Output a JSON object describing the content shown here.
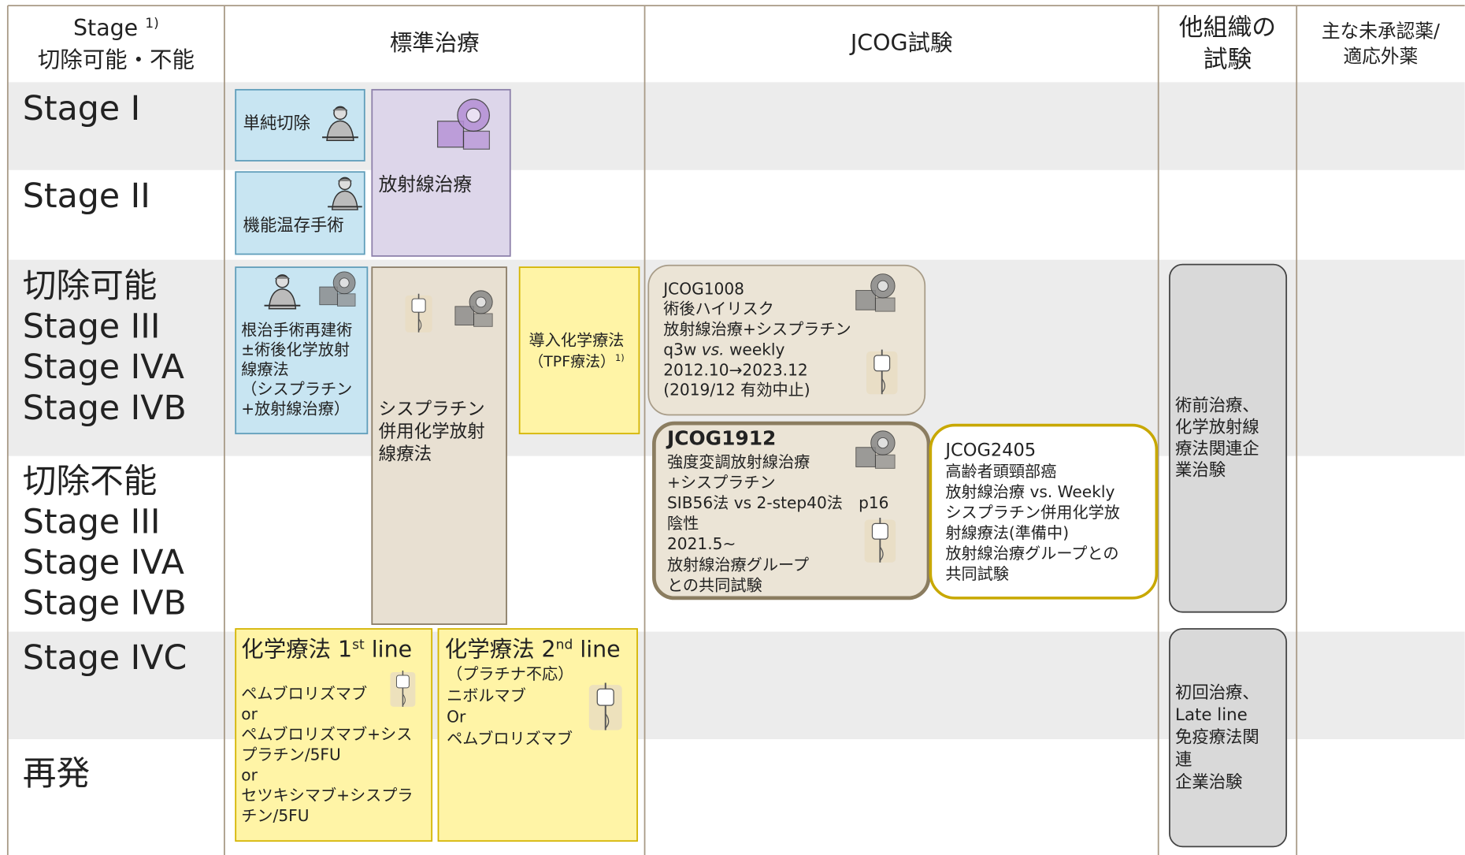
{
  "header": {
    "stage": "Stage ",
    "stage_note": "1)",
    "resectability": "切除可能・不能",
    "standard": "標準治療",
    "jcog": "JCOG試験",
    "other_trials": [
      "他組織の",
      "試験"
    ],
    "unapproved": [
      "主な未承認薬/",
      "適応外薬"
    ]
  },
  "rows": {
    "stage_1": "Stage I",
    "stage_2": "Stage II",
    "resectable": [
      "切除可能",
      "Stage III",
      "Stage IVA",
      "Stage IVB"
    ],
    "unresectable": [
      "切除不能",
      "Stage III",
      "Stage IVA",
      "Stage IVB"
    ],
    "stage_4c": "Stage IVC",
    "recurrence": "再発"
  },
  "standard": {
    "simple_resection": "単純切除",
    "function_preserving": "機能温存手術",
    "radiotherapy": "放射線治療",
    "radical_surgery": [
      "根治手術再建術",
      "±術後化学放射",
      "線療法",
      "（シスプラチン",
      "+放射線治療）"
    ],
    "cisplatin_crt": [
      "シスプラチン",
      "併用化学放射",
      "線療法"
    ],
    "induction": {
      "title": "導入化学療法",
      "regimen": "（TPF療法）",
      "note": "1)"
    },
    "first_line": {
      "title": [
        "化学療法 1",
        "st",
        " line"
      ],
      "lines": [
        "ペムブロリズマブ",
        "or",
        "ペムブロリズマブ+シス",
        "プラチン/5FU",
        "or",
        "セツキシマブ+シスプラ",
        "チン/5FU"
      ]
    },
    "second_line": {
      "title": [
        "化学療法 2",
        "nd",
        " line"
      ],
      "lines": [
        "（プラチナ不応）",
        "ニボルマブ",
        "Or",
        "ペムブロリズマブ"
      ]
    }
  },
  "jcog": {
    "jcog1008": {
      "id": "JCOG1008",
      "lines": [
        "術後ハイリスク",
        "放射線治療+シスプラチン"
      ],
      "schedule": [
        "q3w ",
        "vs.",
        " weekly"
      ],
      "period": [
        "2012.10→2023.12",
        "(2019/12 有効中止)"
      ]
    },
    "jcog1912": {
      "id": "JCOG1912",
      "lines": [
        "強度変調放射線治療",
        "+シスプラチン",
        "SIB56法 vs 2-step40法　p16",
        "陰性",
        "2021.5~",
        "放射線治療グループ",
        "との共同試験"
      ]
    },
    "jcog2405": {
      "id": "JCOG2405",
      "lines": [
        "高齢者頭頸部癌",
        "放射線治療 vs. Weekly",
        "シスプラチン併用化学放",
        "射線療法(準備中)",
        "放射線治療グループとの",
        "共同試験"
      ]
    }
  },
  "other_trials": {
    "neoadjuvant": [
      "術前治療、",
      "化学放射線",
      "療法関連企",
      "業治験"
    ],
    "immunotherapy": [
      "初回治療、",
      "Late line",
      "免疫療法関",
      "連",
      "企業治験"
    ]
  }
}
